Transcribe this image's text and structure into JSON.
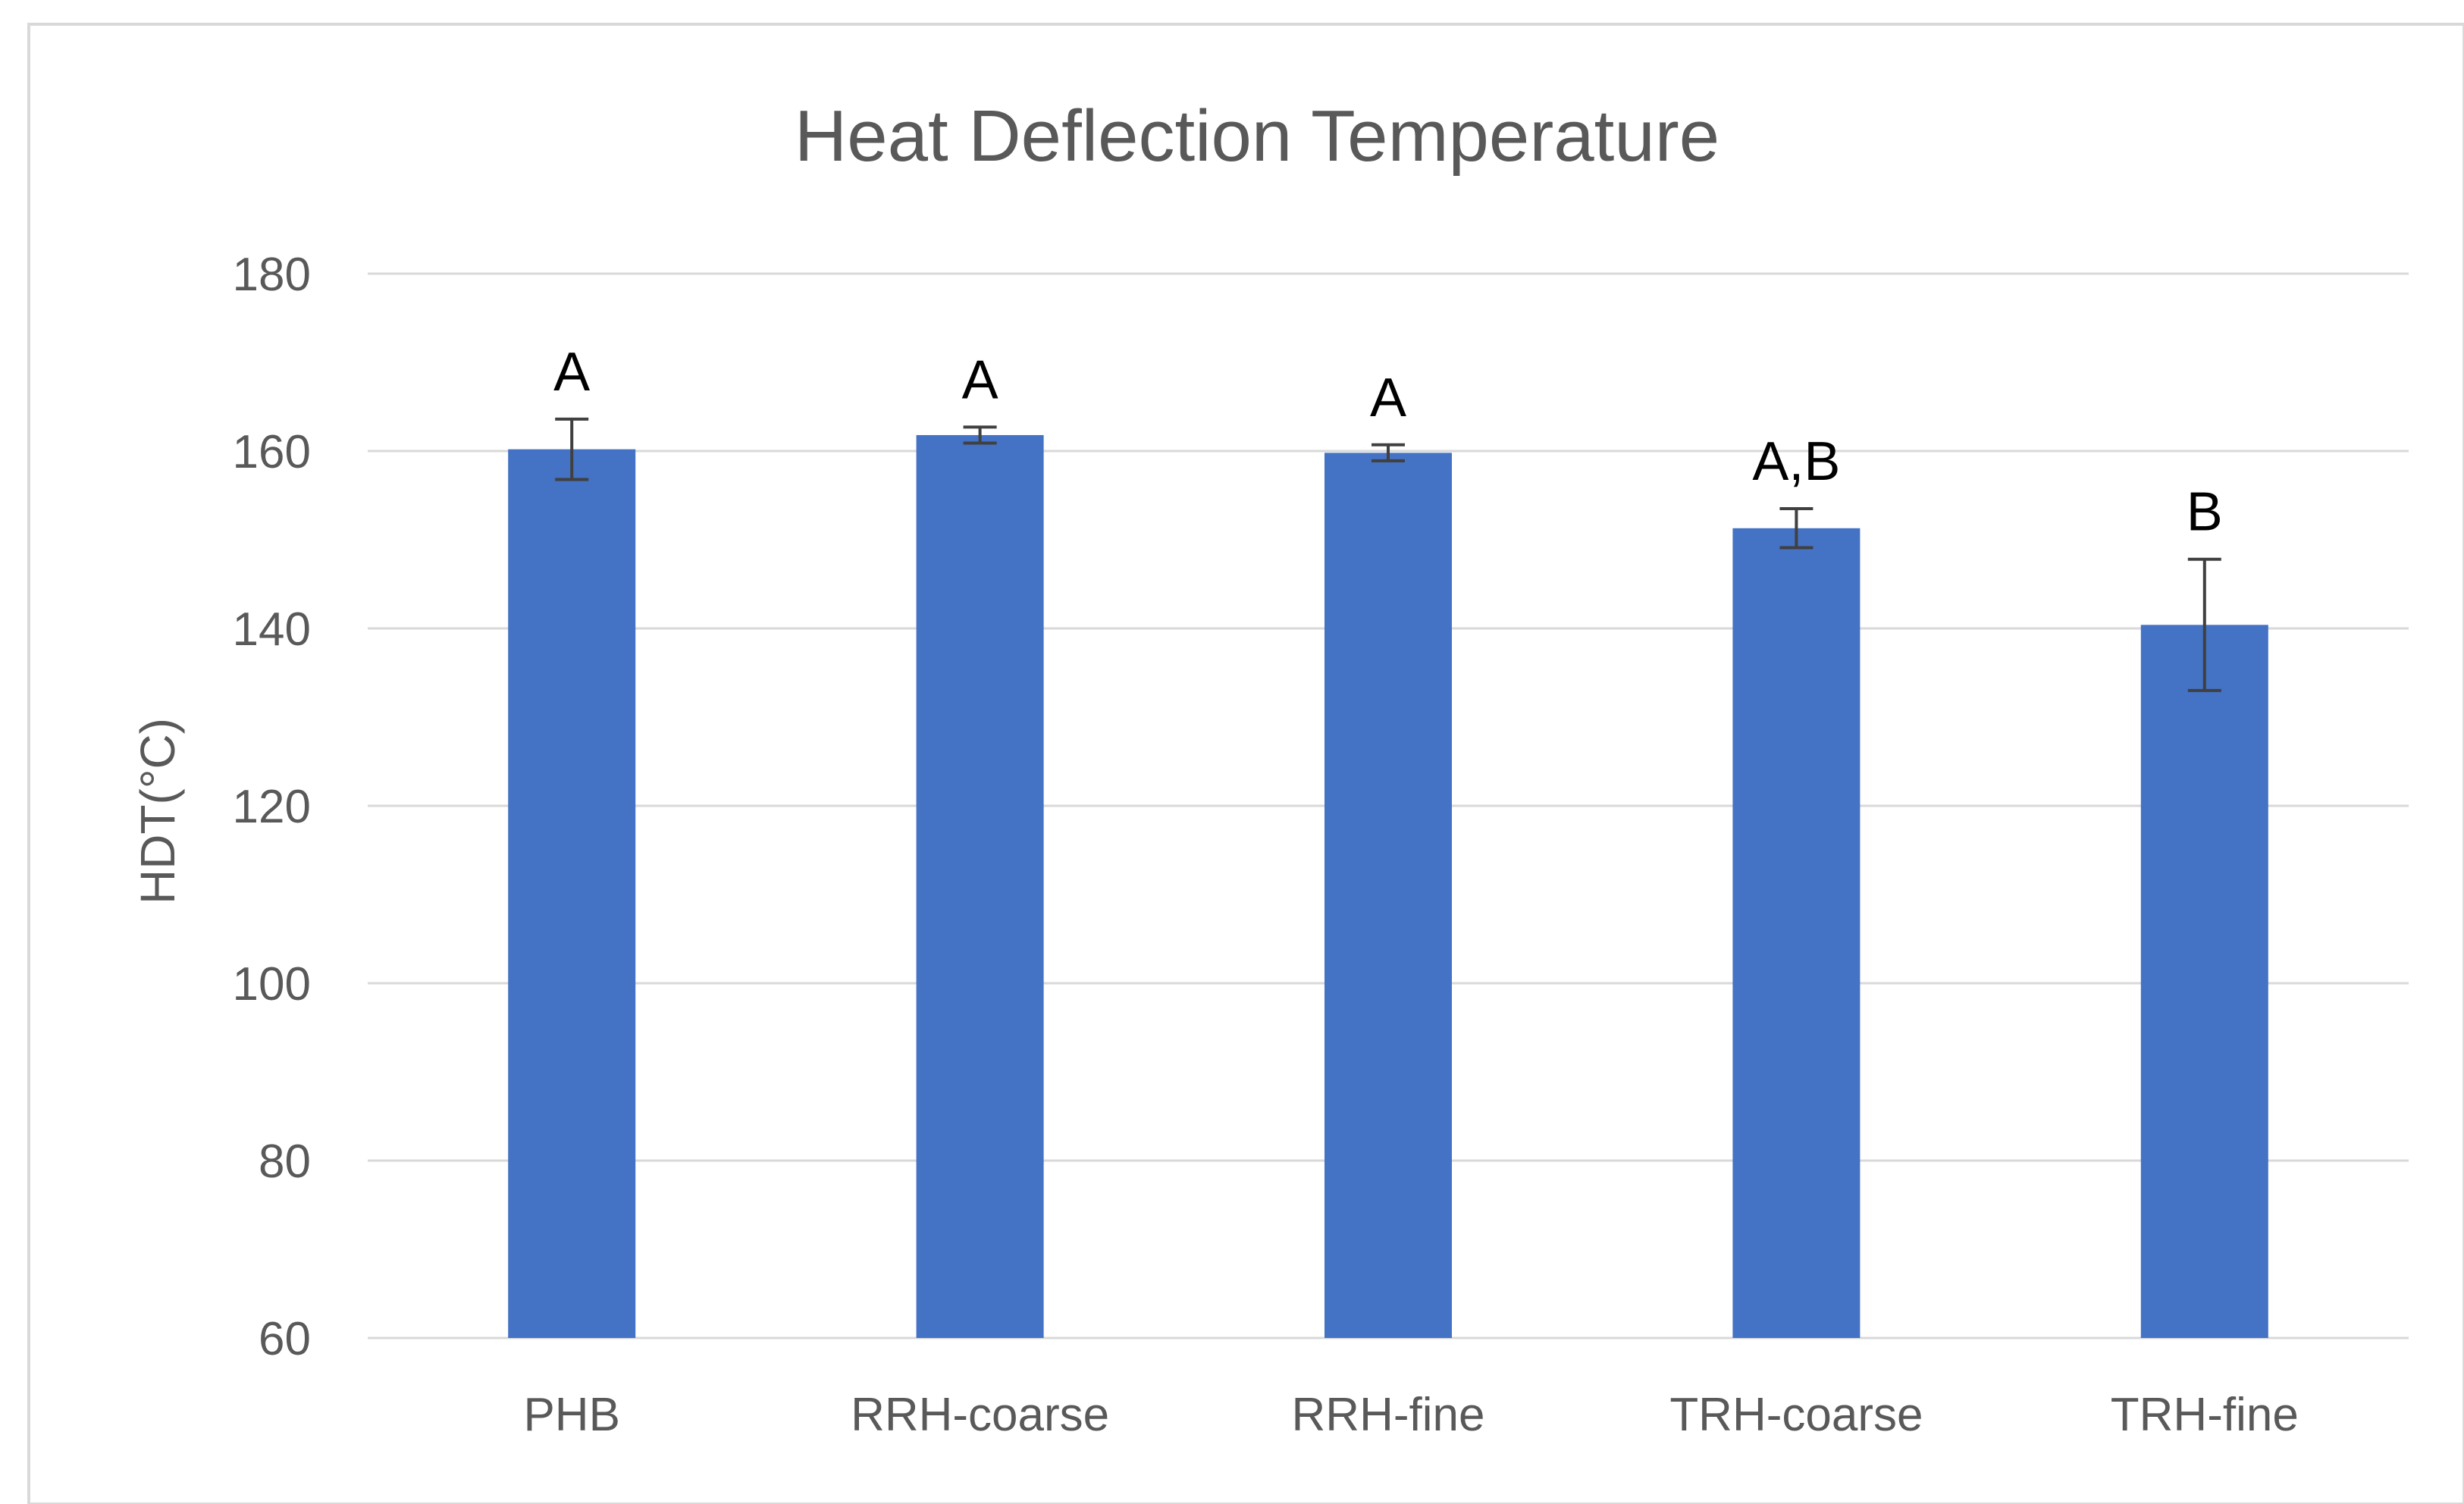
{
  "chart_data": {
    "type": "bar",
    "title": "Heat Deflection Temperature",
    "xlabel": "",
    "ylabel": "HDT(°C)",
    "ylim": [
      60,
      180
    ],
    "yticks": [
      60,
      80,
      100,
      120,
      140,
      160,
      180
    ],
    "grid": true,
    "categories": [
      "PHB",
      "RRH-coarse",
      "RRH-fine",
      "TRH-coarse",
      "TRH-fine"
    ],
    "values": [
      160.2,
      161.8,
      159.8,
      151.3,
      140.4
    ],
    "errors": [
      3.4,
      0.9,
      0.9,
      2.2,
      7.4
    ],
    "annotations": [
      "A",
      "A",
      "A",
      "A,B",
      "B"
    ],
    "colors": {
      "bar": "#4472C4",
      "grid": "#D9D9D9",
      "text": "#595959"
    }
  }
}
